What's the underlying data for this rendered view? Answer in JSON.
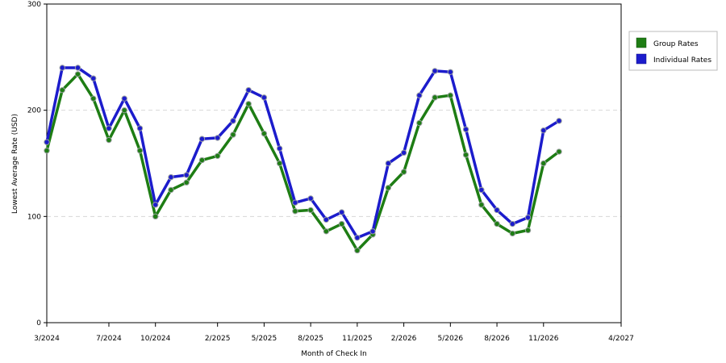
{
  "chart_data": {
    "type": "line",
    "title": "",
    "xlabel": "Month of Check In",
    "ylabel": "Lowest Average Rate (USD)",
    "ylim": [
      0,
      300
    ],
    "yticks": [
      0,
      100,
      200,
      300
    ],
    "grid": "horizontal-dashed",
    "legend_placement": "right",
    "x_tick_labels": [
      {
        "index": 0,
        "label": "3/2024"
      },
      {
        "index": 4,
        "label": "7/2024"
      },
      {
        "index": 7,
        "label": "10/2024"
      },
      {
        "index": 11,
        "label": "2/2025"
      },
      {
        "index": 14,
        "label": "5/2025"
      },
      {
        "index": 17,
        "label": "8/2025"
      },
      {
        "index": 20,
        "label": "11/2025"
      },
      {
        "index": 23,
        "label": "2/2026"
      },
      {
        "index": 26,
        "label": "5/2026"
      },
      {
        "index": 29,
        "label": "8/2026"
      },
      {
        "index": 32,
        "label": "11/2026"
      },
      {
        "index": 37,
        "label": "4/2027"
      }
    ],
    "x": [
      "3/2024",
      "4/2024",
      "5/2024",
      "6/2024",
      "7/2024",
      "8/2024",
      "9/2024",
      "10/2024",
      "11/2024",
      "12/2024",
      "1/2025",
      "2/2025",
      "3/2025",
      "4/2025",
      "5/2025",
      "6/2025",
      "7/2025",
      "8/2025",
      "9/2025",
      "10/2025",
      "11/2025",
      "12/2025",
      "1/2026",
      "2/2026",
      "3/2026",
      "4/2026",
      "5/2026",
      "6/2026",
      "7/2026",
      "8/2026",
      "9/2026",
      "10/2026",
      "11/2026",
      "12/2026",
      "1/2027",
      "2/2027",
      "3/2027",
      "4/2027"
    ],
    "series": [
      {
        "name": "Group Rates",
        "color": "#1e7d14",
        "values": [
          162,
          219,
          234,
          211,
          172,
          200,
          162,
          100,
          125,
          132,
          153,
          157,
          177,
          206,
          178,
          150,
          105,
          106,
          86,
          93,
          68,
          83,
          127,
          142,
          188,
          212,
          214,
          158,
          111,
          93,
          84,
          87,
          150,
          161,
          0,
          0,
          0,
          0
        ]
      },
      {
        "name": "Individual Rates",
        "color": "#1c1ccc",
        "values": [
          170,
          240,
          240,
          230,
          183,
          211,
          183,
          111,
          137,
          139,
          173,
          174,
          190,
          219,
          212,
          164,
          113,
          117,
          97,
          104,
          80,
          86,
          150,
          160,
          214,
          237,
          236,
          182,
          125,
          106,
          93,
          99,
          181,
          190,
          0,
          0,
          0,
          0
        ]
      }
    ]
  }
}
